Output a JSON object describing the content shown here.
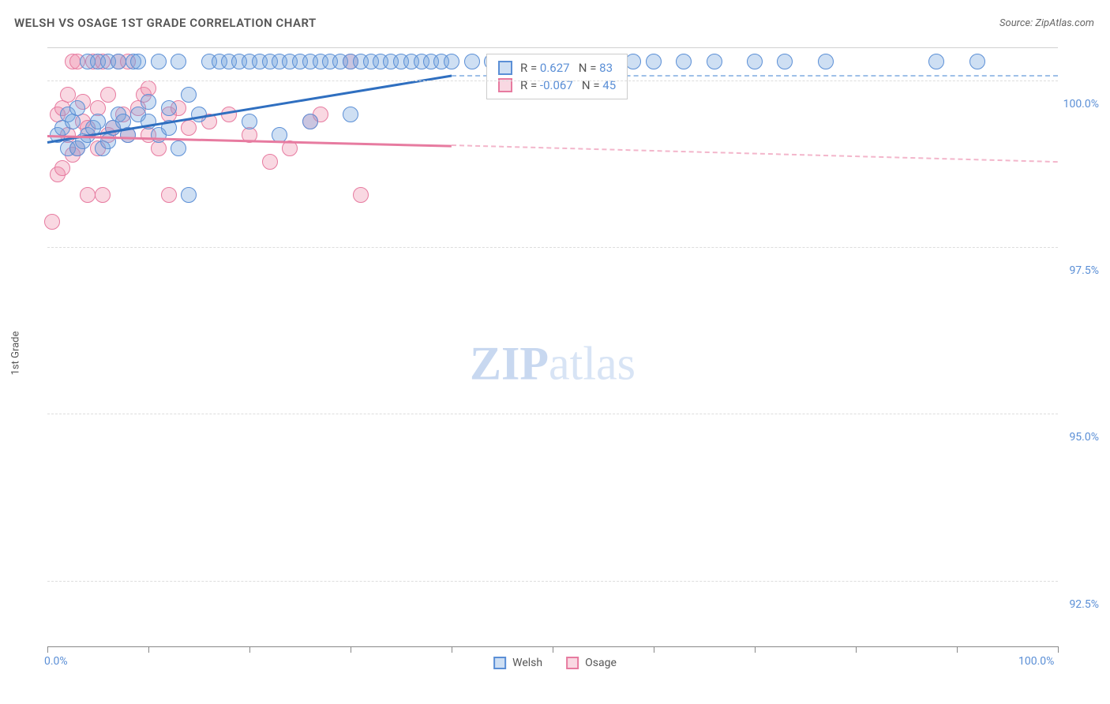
{
  "title": "WELSH VS OSAGE 1ST GRADE CORRELATION CHART",
  "source_label": "Source: ZipAtlas.com",
  "y_axis_label": "1st Grade",
  "watermark_bold": "ZIP",
  "watermark_light": "atlas",
  "chart": {
    "type": "scatter",
    "xlim": [
      0,
      100
    ],
    "ylim": [
      91.5,
      100.5
    ],
    "y_ticks": [
      92.5,
      95.0,
      97.5,
      100.0
    ],
    "y_tick_labels": [
      "92.5%",
      "95.0%",
      "97.5%",
      "100.0%"
    ],
    "x_ticks": [
      0,
      10,
      20,
      30,
      40,
      50,
      60,
      70,
      80,
      90,
      100
    ],
    "x_tick_labels_shown": {
      "0": "0.0%",
      "100": "100.0%"
    },
    "background_color": "#ffffff",
    "grid_color": "#dddddd",
    "marker_radius": 10,
    "marker_stroke_width": 1.5,
    "series": [
      {
        "name": "Welsh",
        "fill": "rgba(114,164,222,0.35)",
        "stroke": "#5b8fd6",
        "line_color": "#2f6fc0",
        "line_dash_color": "#9ec0e8",
        "R": 0.627,
        "N": 83,
        "trend": {
          "x1": 0,
          "y1": 99.1,
          "x2": 40,
          "y2": 100.1,
          "ext_x2": 100,
          "ext_y2": 100.1
        },
        "points": [
          [
            1,
            99.2
          ],
          [
            1.5,
            99.3
          ],
          [
            2,
            99.0
          ],
          [
            2,
            99.5
          ],
          [
            2.5,
            99.4
          ],
          [
            3,
            99.0
          ],
          [
            3,
            99.6
          ],
          [
            3.5,
            99.1
          ],
          [
            4,
            100.3
          ],
          [
            4,
            99.2
          ],
          [
            4.5,
            99.3
          ],
          [
            5,
            100.3
          ],
          [
            5,
            99.4
          ],
          [
            5.5,
            99.0
          ],
          [
            6,
            99.1
          ],
          [
            6,
            100.3
          ],
          [
            6.5,
            99.3
          ],
          [
            7,
            99.5
          ],
          [
            7,
            100.3
          ],
          [
            7.5,
            99.4
          ],
          [
            8,
            99.2
          ],
          [
            8.5,
            100.3
          ],
          [
            9,
            99.5
          ],
          [
            9,
            100.3
          ],
          [
            10,
            99.4
          ],
          [
            10,
            99.7
          ],
          [
            11,
            99.2
          ],
          [
            11,
            100.3
          ],
          [
            12,
            99.6
          ],
          [
            12,
            99.3
          ],
          [
            13,
            100.3
          ],
          [
            14,
            99.8
          ],
          [
            14,
            98.3
          ],
          [
            15,
            99.5
          ],
          [
            16,
            100.3
          ],
          [
            17,
            100.3
          ],
          [
            18,
            100.3
          ],
          [
            19,
            100.3
          ],
          [
            20,
            100.3
          ],
          [
            20,
            99.4
          ],
          [
            21,
            100.3
          ],
          [
            22,
            100.3
          ],
          [
            23,
            99.2
          ],
          [
            23,
            100.3
          ],
          [
            24,
            100.3
          ],
          [
            25,
            100.3
          ],
          [
            26,
            99.4
          ],
          [
            26,
            100.3
          ],
          [
            27,
            100.3
          ],
          [
            28,
            100.3
          ],
          [
            29,
            100.3
          ],
          [
            30,
            100.3
          ],
          [
            30,
            99.5
          ],
          [
            31,
            100.3
          ],
          [
            32,
            100.3
          ],
          [
            33,
            100.3
          ],
          [
            34,
            100.3
          ],
          [
            35,
            100.3
          ],
          [
            36,
            100.3
          ],
          [
            37,
            100.3
          ],
          [
            38,
            100.3
          ],
          [
            39,
            100.3
          ],
          [
            40,
            100.3
          ],
          [
            42,
            100.3
          ],
          [
            44,
            100.3
          ],
          [
            45,
            100.3
          ],
          [
            47,
            100.3
          ],
          [
            48,
            100.3
          ],
          [
            49,
            100.3
          ],
          [
            50,
            100.3
          ],
          [
            52,
            100.3
          ],
          [
            53,
            100.3
          ],
          [
            56,
            100.3
          ],
          [
            58,
            100.3
          ],
          [
            60,
            100.3
          ],
          [
            63,
            100.3
          ],
          [
            66,
            100.3
          ],
          [
            70,
            100.3
          ],
          [
            73,
            100.3
          ],
          [
            77,
            100.3
          ],
          [
            88,
            100.3
          ],
          [
            92,
            100.3
          ],
          [
            13,
            99.0
          ]
        ]
      },
      {
        "name": "Osage",
        "fill": "rgba(238,144,172,0.35)",
        "stroke": "#e77ba0",
        "line_color": "#e77ba0",
        "line_dash_color": "#f3b6cb",
        "R": -0.067,
        "N": 45,
        "trend": {
          "x1": 0,
          "y1": 99.2,
          "x2": 40,
          "y2": 99.05,
          "ext_x2": 100,
          "ext_y2": 98.8
        },
        "points": [
          [
            0.5,
            97.9
          ],
          [
            1,
            98.6
          ],
          [
            1,
            99.5
          ],
          [
            1.5,
            98.7
          ],
          [
            1.5,
            99.6
          ],
          [
            2,
            99.2
          ],
          [
            2,
            99.8
          ],
          [
            2.5,
            100.3
          ],
          [
            2.5,
            98.9
          ],
          [
            3,
            99.0
          ],
          [
            3,
            100.3
          ],
          [
            3.5,
            99.4
          ],
          [
            3.5,
            99.7
          ],
          [
            4,
            99.3
          ],
          [
            4,
            98.3
          ],
          [
            4.5,
            100.3
          ],
          [
            5,
            99.0
          ],
          [
            5,
            99.6
          ],
          [
            5.5,
            98.3
          ],
          [
            5.5,
            100.3
          ],
          [
            6,
            99.2
          ],
          [
            6,
            99.8
          ],
          [
            6.5,
            99.3
          ],
          [
            7,
            100.3
          ],
          [
            7.5,
            99.5
          ],
          [
            8,
            99.2
          ],
          [
            8,
            100.3
          ],
          [
            9,
            99.6
          ],
          [
            9.5,
            99.8
          ],
          [
            10,
            99.2
          ],
          [
            10,
            99.9
          ],
          [
            11,
            99.0
          ],
          [
            12,
            99.5
          ],
          [
            12,
            98.3
          ],
          [
            13,
            99.6
          ],
          [
            14,
            99.3
          ],
          [
            16,
            99.4
          ],
          [
            18,
            99.5
          ],
          [
            20,
            99.2
          ],
          [
            22,
            98.8
          ],
          [
            24,
            99.0
          ],
          [
            26,
            99.4
          ],
          [
            27,
            99.5
          ],
          [
            30,
            100.3
          ],
          [
            31,
            98.3
          ]
        ]
      }
    ]
  },
  "stats_legend": {
    "r_prefix": "R = ",
    "n_prefix": "N = ",
    "text_color": "#555555",
    "value_color": "#5b8fd6"
  },
  "bottom_legend": {
    "items": [
      "Welsh",
      "Osage"
    ]
  }
}
